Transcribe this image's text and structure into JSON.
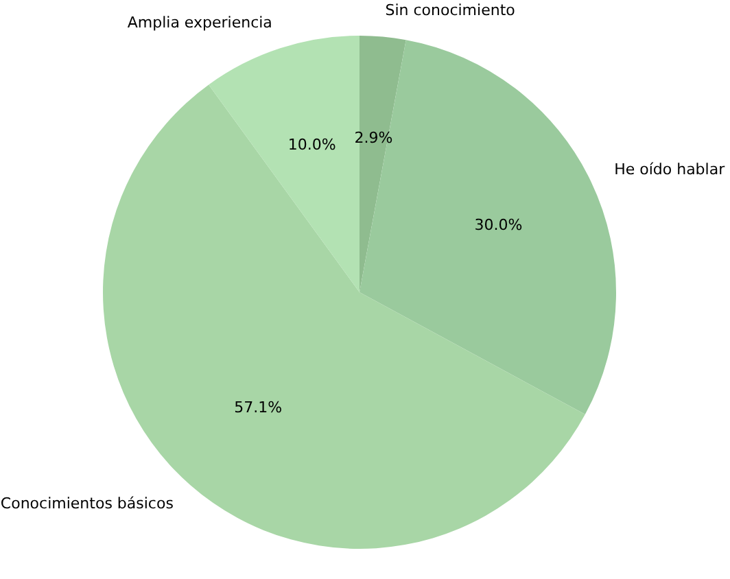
{
  "chart_data": {
    "type": "pie",
    "categories": [
      "Sin conocimiento",
      "He oído hablar",
      "Conocimientos básicos",
      "Amplia experiencia"
    ],
    "values": [
      2.9,
      30.0,
      57.1,
      10.0
    ],
    "value_labels": [
      "2.9%",
      "30.0%",
      "57.1%",
      "10.0%"
    ],
    "colors": [
      "#8fbc8f",
      "#9aca9d",
      "#a8d6a6",
      "#b3e2b3"
    ],
    "legend": false
  }
}
